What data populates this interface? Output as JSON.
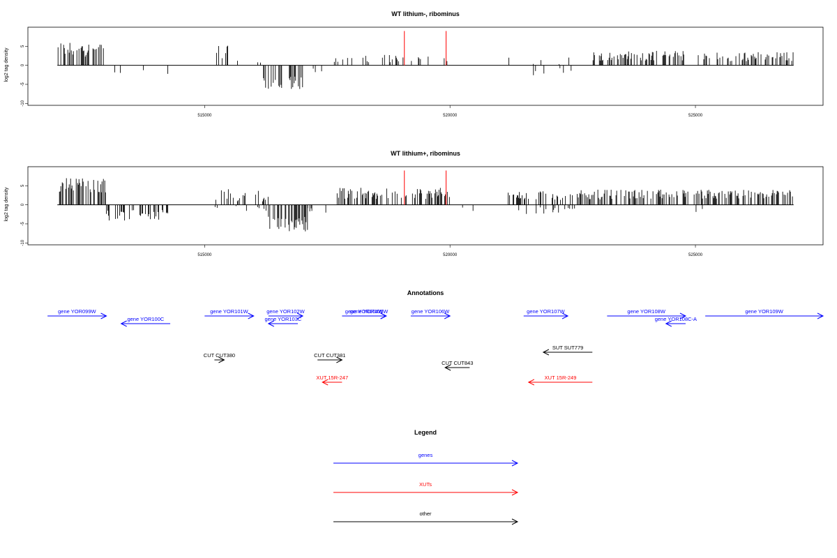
{
  "chart_data": [
    {
      "type": "bar",
      "title": "WT lithium-, ribominus",
      "ylabel": "log2 tag density",
      "xlabel": "",
      "xlim": [
        511400,
        527600
      ],
      "ylim": [
        -10.5,
        10
      ],
      "yticks": [
        -10,
        -5,
        0,
        5
      ],
      "xticks": [
        515000,
        520000,
        525000
      ],
      "grid": false,
      "highlights": [
        {
          "x": 519070,
          "y": 9,
          "color": "#ff0000"
        },
        {
          "x": 519920,
          "y": 9,
          "color": "#ff0000"
        }
      ],
      "segments": [
        {
          "from": 512000,
          "to": 513000,
          "mean": 4.2,
          "spread": 2.0,
          "density": 0.45,
          "sign": 1,
          "max": 8.5
        },
        {
          "from": 513000,
          "to": 514300,
          "mean": -1.5,
          "spread": 1.0,
          "density": 0.04,
          "sign": -1,
          "max": 3.5
        },
        {
          "from": 515200,
          "to": 515500,
          "mean": 3.5,
          "spread": 1.8,
          "density": 0.35,
          "sign": 1,
          "max": 7
        },
        {
          "from": 515500,
          "to": 516200,
          "mean": 1.0,
          "spread": 0.6,
          "density": 0.08,
          "sign": 1,
          "max": 3
        },
        {
          "from": 516200,
          "to": 517000,
          "mean": -4.5,
          "spread": 1.8,
          "density": 0.5,
          "sign": -1,
          "max": 8.2
        },
        {
          "from": 517000,
          "to": 517400,
          "mean": -1.2,
          "spread": 0.8,
          "density": 0.06,
          "sign": -1,
          "max": 3
        },
        {
          "from": 517600,
          "to": 519000,
          "mean": 1.8,
          "spread": 1.0,
          "density": 0.2,
          "sign": 1,
          "max": 4
        },
        {
          "from": 519000,
          "to": 520000,
          "mean": 1.5,
          "spread": 1.0,
          "density": 0.15,
          "sign": 1,
          "max": 4
        },
        {
          "from": 521100,
          "to": 522500,
          "mean": 0.9,
          "spread": 1.2,
          "density": 0.08,
          "sign": 1,
          "max": 3.5
        },
        {
          "from": 521600,
          "to": 522500,
          "mean": -1.6,
          "spread": 1.0,
          "density": 0.05,
          "sign": -1,
          "max": 3.7
        },
        {
          "from": 522900,
          "to": 524800,
          "mean": 2.5,
          "spread": 1.3,
          "density": 0.4,
          "sign": 1,
          "max": 5.5
        },
        {
          "from": 525000,
          "to": 527000,
          "mean": 2.3,
          "spread": 1.2,
          "density": 0.4,
          "sign": 1,
          "max": 5
        }
      ]
    },
    {
      "type": "bar",
      "title": "WT lithium+, ribominus",
      "ylabel": "log2 tag density",
      "xlabel": "",
      "xlim": [
        511400,
        527600
      ],
      "ylim": [
        -10.5,
        10
      ],
      "yticks": [
        -10,
        -5,
        0,
        5
      ],
      "xticks": [
        515000,
        520000,
        525000
      ],
      "grid": false,
      "highlights": [
        {
          "x": 519070,
          "y": 9,
          "color": "#ff0000"
        },
        {
          "x": 519920,
          "y": 9,
          "color": "#ff0000"
        }
      ],
      "segments": [
        {
          "from": 512000,
          "to": 513000,
          "mean": 5.2,
          "spread": 2.0,
          "density": 0.5,
          "sign": 1,
          "max": 9
        },
        {
          "from": 513000,
          "to": 514300,
          "mean": -2.8,
          "spread": 1.4,
          "density": 0.3,
          "sign": -1,
          "max": 5.5
        },
        {
          "from": 515100,
          "to": 516300,
          "mean": 2.5,
          "spread": 1.6,
          "density": 0.35,
          "sign": 1,
          "max": 6
        },
        {
          "from": 515100,
          "to": 516300,
          "mean": -1.0,
          "spread": 0.8,
          "density": 0.08,
          "sign": -1,
          "max": 3
        },
        {
          "from": 516300,
          "to": 517100,
          "mean": -5.0,
          "spread": 2.0,
          "density": 0.55,
          "sign": -1,
          "max": 9.8
        },
        {
          "from": 517100,
          "to": 517500,
          "mean": -1.6,
          "spread": 0.9,
          "density": 0.15,
          "sign": -1,
          "max": 3.5
        },
        {
          "from": 517700,
          "to": 520000,
          "mean": 3.0,
          "spread": 1.5,
          "density": 0.45,
          "sign": 1,
          "max": 7
        },
        {
          "from": 520000,
          "to": 520600,
          "mean": -1.0,
          "spread": 0.8,
          "density": 0.06,
          "sign": -1,
          "max": 3
        },
        {
          "from": 521100,
          "to": 522600,
          "mean": 2.4,
          "spread": 1.2,
          "density": 0.35,
          "sign": 1,
          "max": 4.5
        },
        {
          "from": 521400,
          "to": 522600,
          "mean": -1.5,
          "spread": 0.9,
          "density": 0.12,
          "sign": -1,
          "max": 3.5
        },
        {
          "from": 522600,
          "to": 527000,
          "mean": 2.7,
          "spread": 1.3,
          "density": 0.45,
          "sign": 1,
          "max": 6
        },
        {
          "from": 524700,
          "to": 525300,
          "mean": -1.5,
          "spread": 0.8,
          "density": 0.05,
          "sign": -1,
          "max": 3.2
        }
      ]
    }
  ],
  "annotations": {
    "title": "Annotations",
    "xlim": [
      511400,
      527600
    ],
    "items": [
      {
        "label": "gene YOR099W",
        "start": 511800,
        "end": 513000,
        "strand": "+",
        "row": 0,
        "color": "#0000ff"
      },
      {
        "label": "gene YOR100C",
        "start": 513300,
        "end": 514300,
        "strand": "-",
        "row": 1,
        "color": "#0000ff"
      },
      {
        "label": "gene YOR101W",
        "start": 515000,
        "end": 516000,
        "strand": "+",
        "row": 0,
        "color": "#0000ff"
      },
      {
        "label": "gene YOR102W",
        "start": 516300,
        "end": 517000,
        "strand": "+",
        "row": 0,
        "color": "#0000ff"
      },
      {
        "label": "gene YOR103C",
        "start": 516300,
        "end": 516900,
        "strand": "-",
        "row": 1,
        "color": "#0000ff"
      },
      {
        "label": "gene YOR104W",
        "start": 517800,
        "end": 518700,
        "strand": "+",
        "row": 0,
        "color": "#0000ff"
      },
      {
        "label": "gene YOR105W",
        "start": 518000,
        "end": 518700,
        "strand": "+",
        "row": 0,
        "color": "#0000ff"
      },
      {
        "label": "gene YOR106W",
        "start": 519200,
        "end": 520000,
        "strand": "+",
        "row": 0,
        "color": "#0000ff"
      },
      {
        "label": "gene YOR107W",
        "start": 521500,
        "end": 522400,
        "strand": "+",
        "row": 0,
        "color": "#0000ff"
      },
      {
        "label": "gene YOR108W",
        "start": 523200,
        "end": 524800,
        "strand": "+",
        "row": 0,
        "color": "#0000ff"
      },
      {
        "label": "gene YOR108C-A",
        "start": 524400,
        "end": 524800,
        "strand": "-",
        "row": 1,
        "color": "#0000ff"
      },
      {
        "label": "gene YOR109W",
        "start": 525200,
        "end": 527600,
        "strand": "+",
        "row": 0,
        "color": "#0000ff"
      },
      {
        "label": "CUT CUT380",
        "start": 515200,
        "end": 515400,
        "strand": "+",
        "row": 5,
        "color": "#000000"
      },
      {
        "label": "CUT CUT381",
        "start": 517300,
        "end": 517800,
        "strand": "+",
        "row": 5,
        "color": "#000000"
      },
      {
        "label": "CUT CUT843",
        "start": 519900,
        "end": 520400,
        "strand": "-",
        "row": 6,
        "color": "#000000"
      },
      {
        "label": "SUT SUT779",
        "start": 521900,
        "end": 522900,
        "strand": "-",
        "row": 4,
        "color": "#000000"
      },
      {
        "label": "XUT 15R-247",
        "start": 517400,
        "end": 517800,
        "strand": "-",
        "row": 7,
        "color": "#ff0000"
      },
      {
        "label": "XUT 15R-249",
        "start": 521600,
        "end": 522900,
        "strand": "-",
        "row": 7,
        "color": "#ff0000"
      }
    ]
  },
  "legend": {
    "title": "Legend",
    "items": [
      {
        "label": "genes",
        "color": "#0000ff"
      },
      {
        "label": "XUTs",
        "color": "#ff0000"
      },
      {
        "label": "other",
        "color": "#000000"
      }
    ]
  }
}
